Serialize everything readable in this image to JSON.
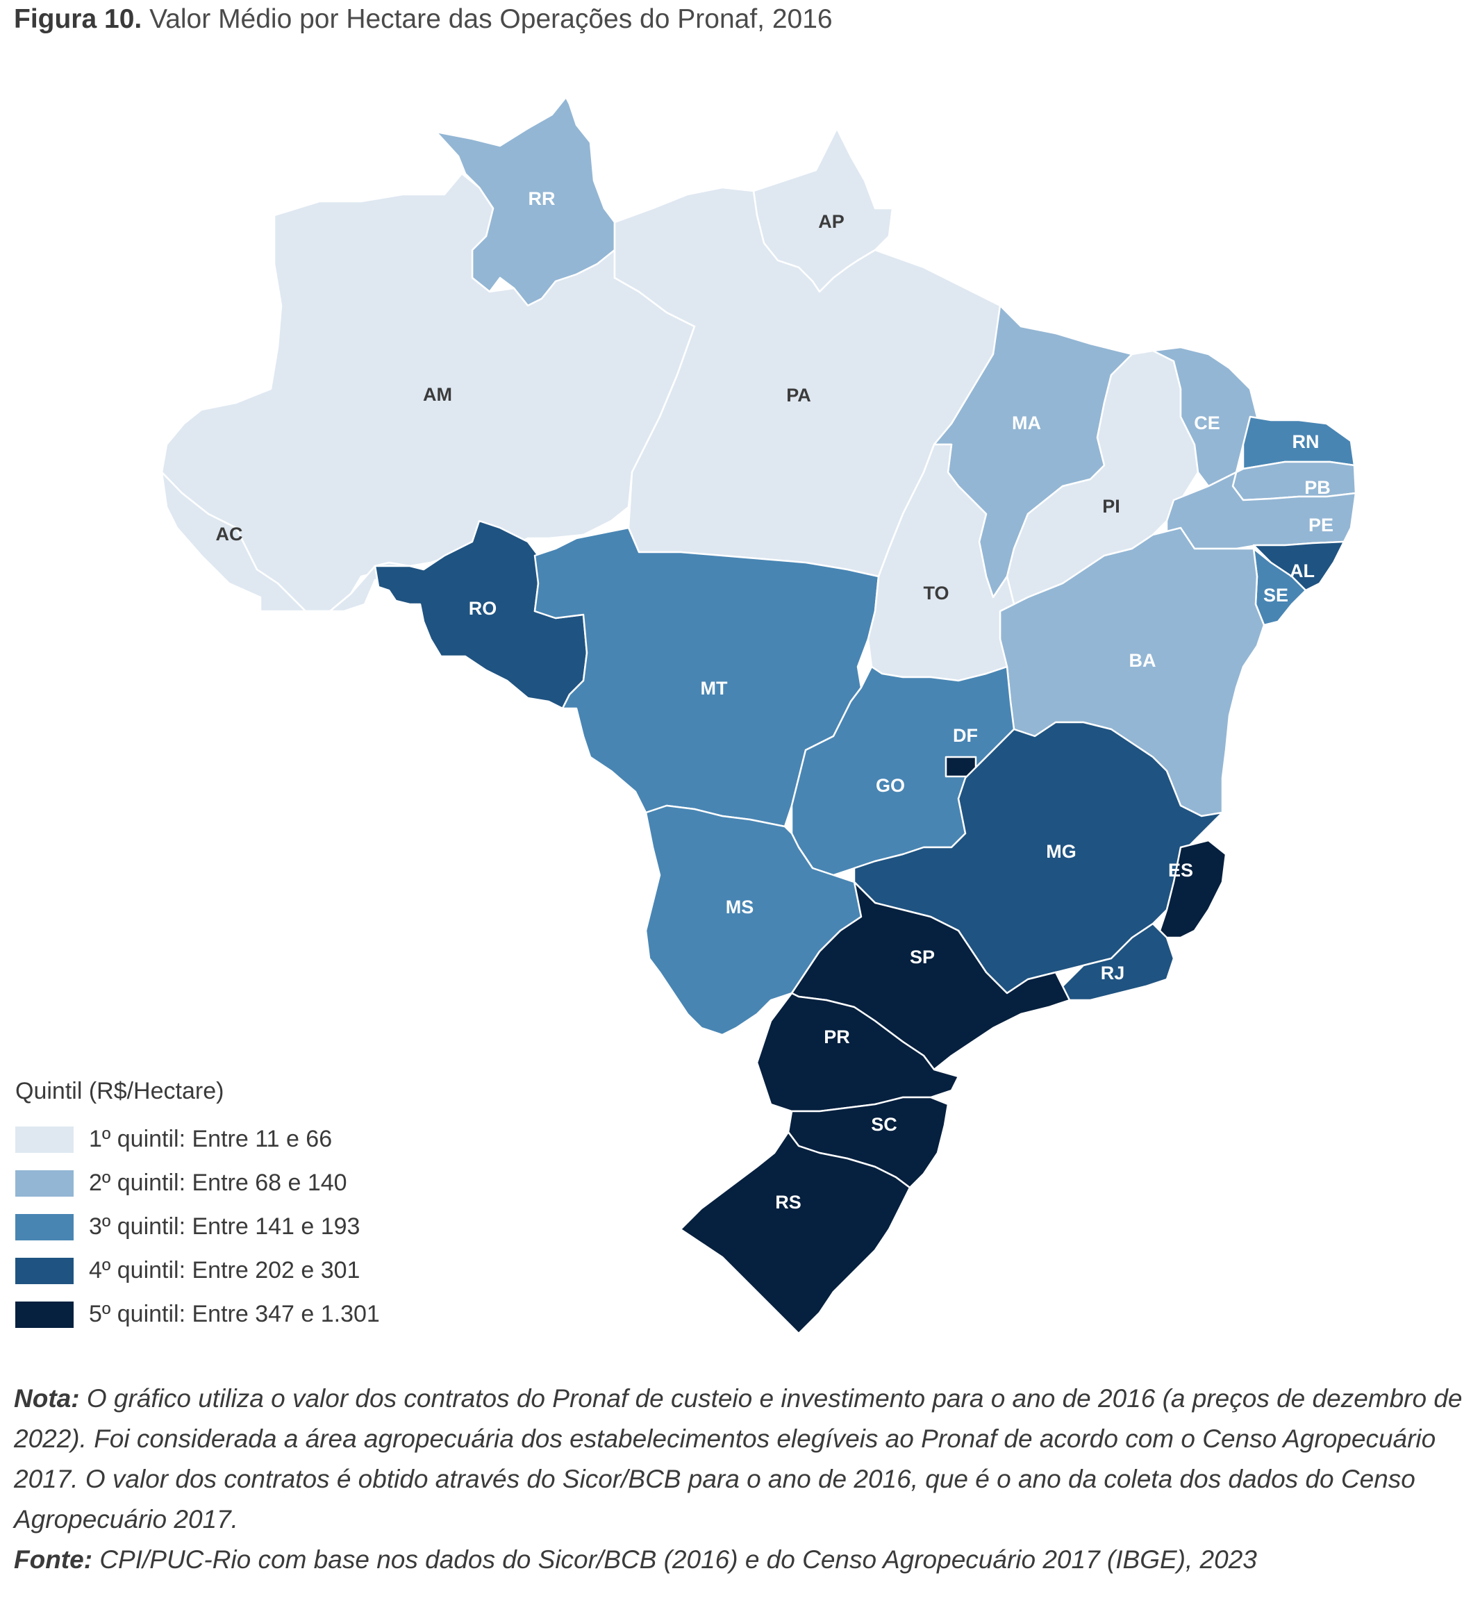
{
  "figure": {
    "number": "Figura 10.",
    "title": "Valor Médio por Hectare das Operações do Pronaf, 2016"
  },
  "colors": {
    "q1": "#dfe8f1",
    "q2": "#93b6d4",
    "q3": "#4885b3",
    "q4": "#1f5381",
    "q5": "#06203f"
  },
  "states": [
    {
      "code": "RR",
      "quintile": 2
    },
    {
      "code": "AP",
      "quintile": 1
    },
    {
      "code": "AM",
      "quintile": 1
    },
    {
      "code": "PA",
      "quintile": 1
    },
    {
      "code": "AC",
      "quintile": 1
    },
    {
      "code": "RO",
      "quintile": 4
    },
    {
      "code": "MT",
      "quintile": 3
    },
    {
      "code": "MA",
      "quintile": 2
    },
    {
      "code": "PI",
      "quintile": 1
    },
    {
      "code": "CE",
      "quintile": 2
    },
    {
      "code": "RN",
      "quintile": 3
    },
    {
      "code": "PB",
      "quintile": 2
    },
    {
      "code": "PE",
      "quintile": 2
    },
    {
      "code": "AL",
      "quintile": 4
    },
    {
      "code": "SE",
      "quintile": 3
    },
    {
      "code": "TO",
      "quintile": 1
    },
    {
      "code": "BA",
      "quintile": 2
    },
    {
      "code": "GO",
      "quintile": 3
    },
    {
      "code": "DF",
      "quintile": 5
    },
    {
      "code": "MG",
      "quintile": 4
    },
    {
      "code": "ES",
      "quintile": 5
    },
    {
      "code": "RJ",
      "quintile": 4
    },
    {
      "code": "MS",
      "quintile": 3
    },
    {
      "code": "SP",
      "quintile": 5
    },
    {
      "code": "PR",
      "quintile": 5
    },
    {
      "code": "SC",
      "quintile": 5
    },
    {
      "code": "RS",
      "quintile": 5
    }
  ],
  "legend": {
    "title": "Quintil (R$/Hectare)",
    "items": [
      {
        "label": "1º quintil: Entre 11 e 66"
      },
      {
        "label": "2º quintil: Entre 68 e 140"
      },
      {
        "label": "3º quintil: Entre 141 e 193"
      },
      {
        "label": "4º quintil: Entre 202 e 301"
      },
      {
        "label": "5º quintil: Entre 347 e 1.301"
      }
    ]
  },
  "note": {
    "label": "Nota:",
    "text": "O gráfico utiliza o valor dos contratos do Pronaf de custeio e investimento para o ano de 2016 (a preços de dezembro de 2022). Foi considerada a área agropecuária dos estabelecimentos elegíveis ao Pronaf de acordo com o Censo Agropecuário 2017. O valor dos contratos é obtido através do Sicor/BCB para o ano de 2016, que é o ano da coleta dos dados do Censo Agropecuário 2017."
  },
  "source": {
    "label": "Fonte:",
    "text": "CPI/PUC-Rio com base nos dados do Sicor/BCB (2016) e do Censo Agropecuário 2017 (IBGE), 2023"
  }
}
